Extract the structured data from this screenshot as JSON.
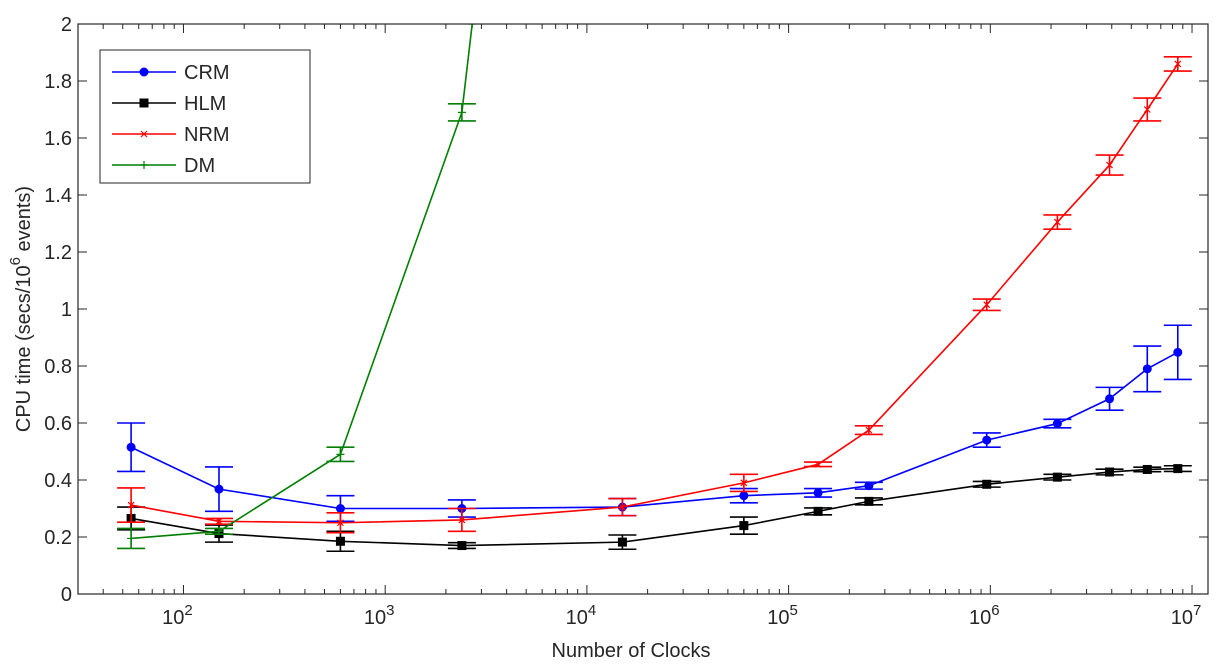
{
  "chart_data": {
    "type": "line",
    "xlabel": "Number of Clocks",
    "ylabel": "CPU time (secs/10",
    "ylabel_superscript": "6",
    "ylabel_suffix": " events)",
    "xscale": "log",
    "xlim": [
      30,
      12000000
    ],
    "ylim": [
      0,
      2
    ],
    "grid": false,
    "legend_position": "top-left",
    "y_ticks": [
      "0",
      "0.2",
      "0.4",
      "0.6",
      "0.8",
      "1",
      "1.2",
      "1.4",
      "1.6",
      "1.8",
      "2"
    ],
    "y_tick_values": [
      0,
      0.2,
      0.4,
      0.6,
      0.8,
      1.0,
      1.2,
      1.4,
      1.6,
      1.8,
      2.0
    ],
    "x_ticks": [
      {
        "base": "10",
        "exp": "2",
        "value": 100
      },
      {
        "base": "10",
        "exp": "3",
        "value": 1000
      },
      {
        "base": "10",
        "exp": "4",
        "value": 10000
      },
      {
        "base": "10",
        "exp": "5",
        "value": 100000
      },
      {
        "base": "10",
        "exp": "6",
        "value": 1000000
      },
      {
        "base": "10",
        "exp": "7",
        "value": 10000000
      }
    ],
    "series": [
      {
        "name": "CRM",
        "color": "#0000ff",
        "marker": "circle",
        "x": [
          55,
          150,
          600,
          2400,
          15000,
          60000,
          140000,
          250000,
          960000,
          2150000,
          3900000,
          6000000,
          8500000
        ],
        "y": [
          0.515,
          0.368,
          0.3,
          0.3,
          0.305,
          0.345,
          0.355,
          0.38,
          0.54,
          0.598,
          0.685,
          0.79,
          0.848
        ],
        "err": [
          0.085,
          0.078,
          0.045,
          0.03,
          0.03,
          0.025,
          0.015,
          0.012,
          0.025,
          0.015,
          0.04,
          0.08,
          0.095
        ]
      },
      {
        "name": "HLM",
        "color": "#000000",
        "marker": "square",
        "x": [
          55,
          150,
          600,
          2400,
          15000,
          60000,
          140000,
          250000,
          960000,
          2150000,
          3900000,
          6000000,
          8500000
        ],
        "y": [
          0.265,
          0.212,
          0.185,
          0.17,
          0.182,
          0.24,
          0.29,
          0.325,
          0.385,
          0.41,
          0.428,
          0.437,
          0.44
        ],
        "err": [
          0.04,
          0.03,
          0.035,
          0.01,
          0.025,
          0.03,
          0.012,
          0.012,
          0.01,
          0.01,
          0.01,
          0.008,
          0.01
        ]
      },
      {
        "name": "NRM",
        "color": "#ff0000",
        "marker": "x",
        "x": [
          55,
          150,
          600,
          2400,
          15000,
          60000,
          140000,
          250000,
          960000,
          2150000,
          3900000,
          6000000,
          8500000
        ],
        "y": [
          0.312,
          0.255,
          0.25,
          0.26,
          0.305,
          0.39,
          0.455,
          0.575,
          1.015,
          1.305,
          1.505,
          1.7,
          1.86
        ],
        "err": [
          0.06,
          0.01,
          0.035,
          0.04,
          0.03,
          0.03,
          0.008,
          0.015,
          0.02,
          0.025,
          0.035,
          0.04,
          0.025
        ]
      },
      {
        "name": "DM",
        "color": "#007f00",
        "marker": "plus",
        "x": [
          55,
          150,
          600,
          2400,
          2700
        ],
        "y": [
          0.195,
          0.22,
          0.49,
          1.69,
          2.0
        ],
        "err": [
          0.035,
          0.01,
          0.025,
          0.03,
          null
        ]
      }
    ]
  }
}
